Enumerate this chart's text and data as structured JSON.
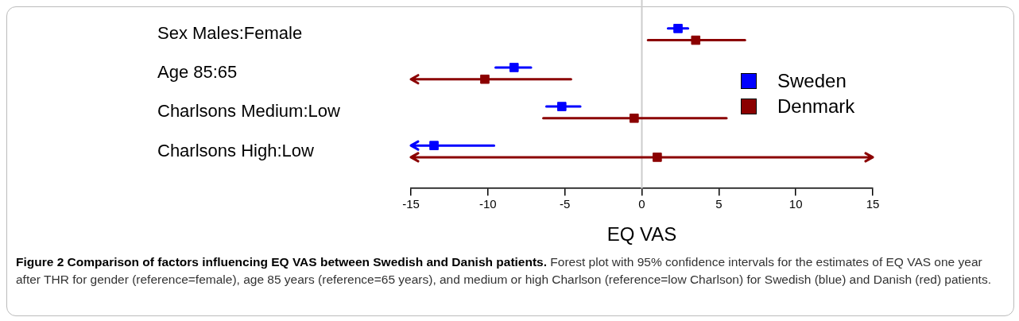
{
  "chart_data": {
    "type": "scatter",
    "orientation": "horizontal",
    "categories": [
      "Sex Males:Female",
      "Age 85:65",
      "Charlsons Medium:Low",
      "Charlsons High:Low"
    ],
    "series": [
      {
        "name": "Sweden",
        "color": "#0000ff",
        "values": [
          2.35,
          -8.3,
          -5.2,
          -13.5
        ],
        "errors": [
          [
            1.7,
            3.0
          ],
          [
            -9.5,
            -7.2
          ],
          [
            -6.2,
            -4.0
          ],
          [
            -15,
            -9.6
          ]
        ]
      },
      {
        "name": "Denmark",
        "color": "#8b0000",
        "values": [
          3.5,
          -10.2,
          -0.5,
          1.0
        ],
        "errors": [
          [
            0.4,
            6.7
          ],
          [
            -15,
            -4.6
          ],
          [
            -6.4,
            5.5
          ],
          [
            -15,
            15
          ]
        ]
      }
    ],
    "xlabel": "EQ VAS",
    "xlim": [
      -15,
      15
    ],
    "xticks": [
      -15,
      -10,
      -5,
      0,
      5,
      10,
      15
    ],
    "ref_lines": [
      {
        "axis": "x",
        "value": 0,
        "color": "#cccccc"
      }
    ],
    "marker": "square",
    "grid": false,
    "legend": "right",
    "annotations": [
      "Figure 2 Comparison of factors influencing EQ VAS between Swedish and Danish patients.",
      "Forest plot with 95% confidence intervals for the estimates of EQ VAS one year after THR for gender (reference=female), age 85 years (reference=65 years), and medium or high Charlson (reference=low Charlson) for Swedish (blue) and Danish (red) patients."
    ]
  }
}
